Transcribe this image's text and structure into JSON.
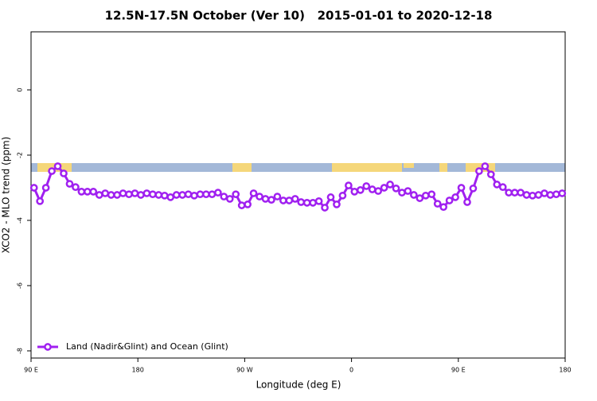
{
  "chart_data": {
    "type": "line",
    "title": "12.5N-17.5N October (Ver 10)   2015-01-01 to 2020-12-18",
    "xlabel": "Longitude (deg E)",
    "ylabel": "XCO2 - MLO trend (ppm)",
    "xlim": [
      90,
      540
    ],
    "xticks": [
      {
        "value": 90,
        "label": "90 E"
      },
      {
        "value": 180,
        "label": "180"
      },
      {
        "value": 270,
        "label": "90 W"
      },
      {
        "value": 360,
        "label": "0"
      },
      {
        "value": 450,
        "label": "90 E"
      },
      {
        "value": 540,
        "label": "180"
      }
    ],
    "ylim": [
      -8.22,
      1.78
    ],
    "yticks": [
      -8,
      -6,
      -4,
      -2,
      0
    ],
    "legend": "bottom-left",
    "x": [
      92.5,
      97.5,
      102.5,
      107.5,
      112.5,
      117.5,
      122.5,
      127.5,
      132.5,
      137.5,
      142.5,
      147.5,
      152.5,
      157.5,
      162.5,
      167.5,
      172.5,
      177.5,
      182.5,
      187.5,
      192.5,
      197.5,
      202.5,
      207.5,
      212.5,
      217.5,
      222.5,
      227.5,
      232.5,
      237.5,
      242.5,
      247.5,
      252.5,
      257.5,
      262.5,
      267.5,
      272.5,
      277.5,
      282.5,
      287.5,
      292.5,
      297.5,
      302.5,
      307.5,
      312.5,
      317.5,
      322.5,
      327.5,
      332.5,
      337.5,
      342.5,
      347.5,
      352.5,
      357.5,
      362.5,
      367.5,
      372.5,
      377.5,
      382.5,
      387.5,
      392.5,
      397.5,
      402.5,
      407.5,
      412.5,
      417.5,
      422.5,
      427.5,
      432.5,
      437.5,
      442.5,
      447.5,
      452.5,
      457.5,
      462.5,
      467.5,
      472.5,
      477.5,
      482.5,
      487.5,
      492.5,
      497.5,
      502.5,
      507.5,
      512.5,
      517.5,
      522.5,
      527.5,
      532.5,
      537.5
    ],
    "series": [
      {
        "name": "Land (Nadir&Glint) and Ocean (Glint)",
        "color": "#a020f0",
        "values": [
          -3.0,
          -3.41,
          -3.0,
          -2.49,
          -2.34,
          -2.56,
          -2.88,
          -2.98,
          -3.12,
          -3.12,
          -3.12,
          -3.22,
          -3.17,
          -3.22,
          -3.22,
          -3.17,
          -3.2,
          -3.17,
          -3.22,
          -3.17,
          -3.2,
          -3.22,
          -3.24,
          -3.29,
          -3.22,
          -3.22,
          -3.2,
          -3.24,
          -3.2,
          -3.2,
          -3.2,
          -3.15,
          -3.27,
          -3.34,
          -3.2,
          -3.54,
          -3.51,
          -3.17,
          -3.27,
          -3.34,
          -3.37,
          -3.27,
          -3.39,
          -3.39,
          -3.34,
          -3.44,
          -3.46,
          -3.46,
          -3.41,
          -3.61,
          -3.29,
          -3.51,
          -3.24,
          -2.93,
          -3.12,
          -3.07,
          -2.95,
          -3.05,
          -3.1,
          -3.0,
          -2.9,
          -3.02,
          -3.15,
          -3.1,
          -3.22,
          -3.32,
          -3.24,
          -3.2,
          -3.49,
          -3.59,
          -3.39,
          -3.29,
          -3.0,
          -3.44,
          -3.02,
          -2.49,
          -2.34,
          -2.59,
          -2.9,
          -2.98,
          -3.15,
          -3.15,
          -3.15,
          -3.22,
          -3.24,
          -3.22,
          -3.17,
          -3.22,
          -3.2,
          -3.17
        ]
      }
    ]
  }
}
